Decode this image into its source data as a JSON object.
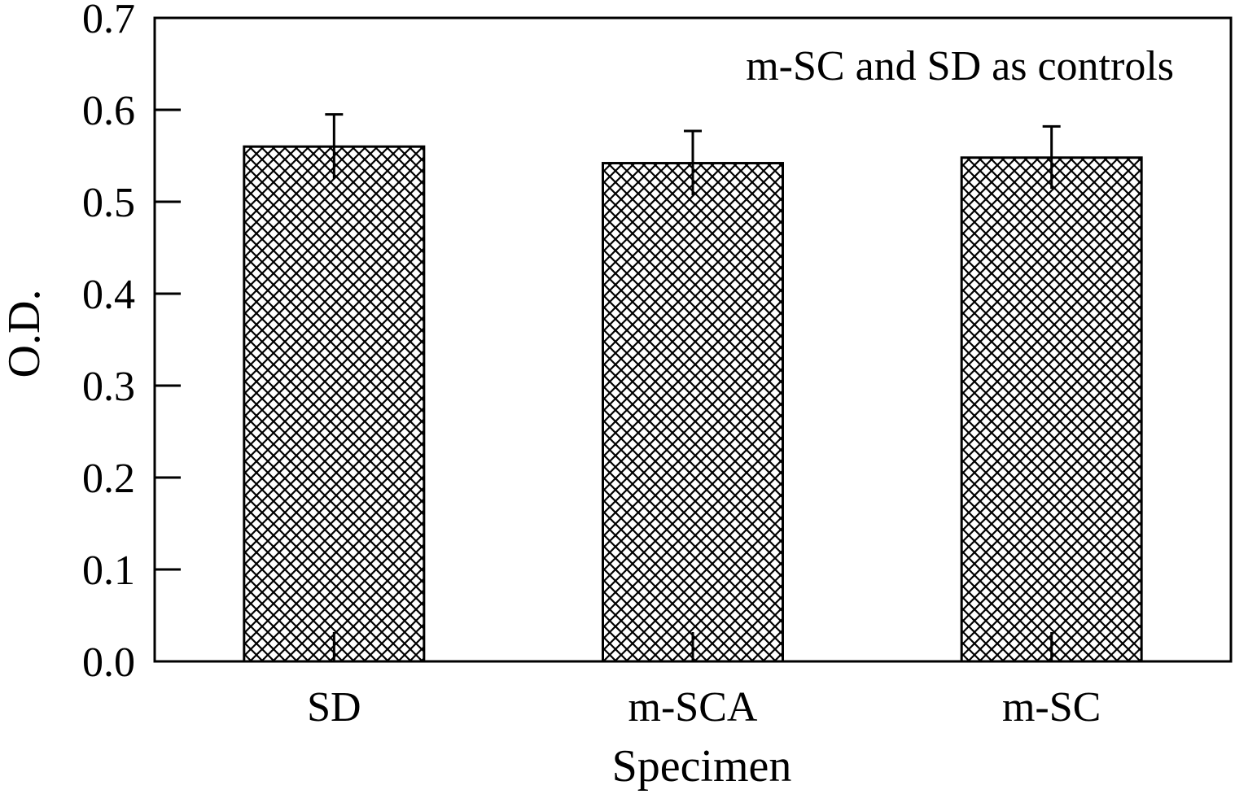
{
  "chart_data": {
    "type": "bar",
    "categories": [
      "SD",
      "m-SCA",
      "m-SC"
    ],
    "values": [
      0.56,
      0.542,
      0.548
    ],
    "errors": [
      0.035,
      0.035,
      0.034
    ],
    "xlabel": "Specimen",
    "ylabel": "O.D.",
    "ylim": [
      0.0,
      0.7
    ],
    "yticks": [
      "0.0",
      "0.1",
      "0.2",
      "0.3",
      "0.4",
      "0.5",
      "0.6",
      "0.7"
    ],
    "annotation": "m-SC and SD as controls",
    "bar_pattern": "crosshatch",
    "grid": false,
    "colors": {
      "bar_stroke": "#000000",
      "background": "#ffffff"
    }
  }
}
